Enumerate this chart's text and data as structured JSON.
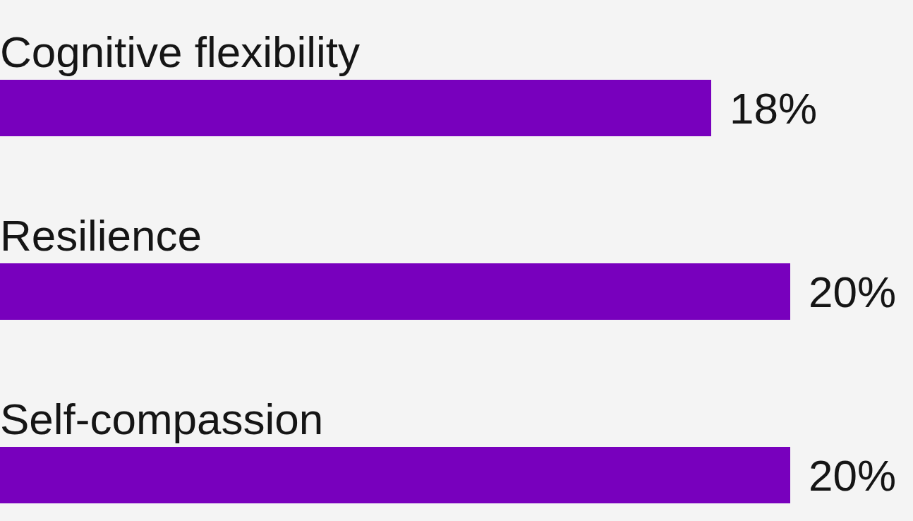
{
  "chart_data": {
    "type": "bar",
    "orientation": "horizontal",
    "categories": [
      "Cognitive flexibility",
      "Resilience",
      "Self-compassion"
    ],
    "values": [
      18,
      20,
      20
    ],
    "color": "#7800bd",
    "value_labels": [
      "18%",
      "20%",
      "20%"
    ]
  }
}
